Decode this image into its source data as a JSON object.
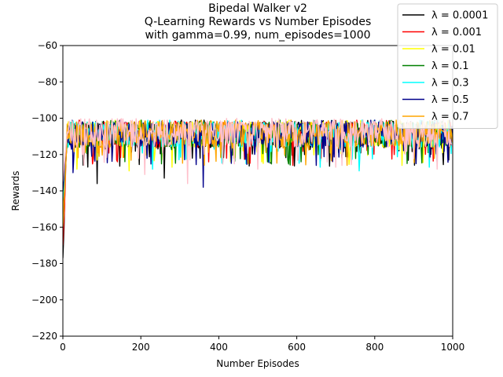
{
  "chart_data": {
    "type": "line",
    "title_lines": [
      "Bipedal Walker v2",
      "Q-Learning Rewards vs Number Episodes",
      "with gamma=0.99, num_episodes=1000"
    ],
    "xlabel": "Number Episodes",
    "ylabel": "Rewards",
    "xlim": [
      0,
      1000
    ],
    "ylim": [
      -220,
      -60
    ],
    "xticks": [
      0,
      200,
      400,
      600,
      800,
      1000
    ],
    "yticks": [
      -220,
      -200,
      -180,
      -160,
      -140,
      -120,
      -100,
      -80,
      -60
    ],
    "grid": false,
    "legend_position": "top-right",
    "series": [
      {
        "name": "λ = 0.0001",
        "color": "#000000",
        "first_points": [
          [
            0,
            -177
          ],
          [
            3,
            -160
          ],
          [
            6,
            -130
          ],
          [
            10,
            -112
          ]
        ],
        "baseline": -110,
        "spread": 7,
        "dips": [
          [
            88,
            -136
          ],
          [
            260,
            -133
          ],
          [
            352,
            -122
          ],
          [
            620,
            -120
          ],
          [
            990,
            -123
          ]
        ]
      },
      {
        "name": "λ = 0.001",
        "color": "#ff0000",
        "first_points": [
          [
            0,
            -170
          ],
          [
            4,
            -150
          ],
          [
            8,
            -122
          ],
          [
            12,
            -110
          ]
        ],
        "baseline": -109,
        "spread": 7,
        "dips": [
          [
            140,
            -124
          ],
          [
            420,
            -122
          ],
          [
            590,
            -126
          ],
          [
            850,
            -120
          ]
        ]
      },
      {
        "name": "λ = 0.01",
        "color": "#ffff00",
        "first_points": [
          [
            0,
            -160
          ],
          [
            4,
            -140
          ],
          [
            8,
            -118
          ]
        ],
        "baseline": -109,
        "spread": 7,
        "dips": [
          [
            35,
            -128
          ],
          [
            170,
            -129
          ],
          [
            280,
            -127
          ],
          [
            430,
            -124
          ],
          [
            870,
            -126
          ]
        ]
      },
      {
        "name": "λ = 0.1",
        "color": "#008000",
        "first_points": [
          [
            0,
            -150
          ],
          [
            5,
            -135
          ],
          [
            9,
            -118
          ]
        ],
        "baseline": -109,
        "spread": 7,
        "dips": [
          [
            45,
            -137
          ],
          [
            75,
            -135
          ],
          [
            370,
            -124
          ],
          [
            740,
            -125
          ]
        ]
      },
      {
        "name": "λ = 0.3",
        "color": "#00ffff",
        "first_points": [
          [
            0,
            -145
          ],
          [
            5,
            -128
          ],
          [
            10,
            -115
          ]
        ],
        "baseline": -109,
        "spread": 7,
        "dips": [
          [
            230,
            -128
          ],
          [
            470,
            -125
          ],
          [
            660,
            -127
          ],
          [
            760,
            -129
          ],
          [
            940,
            -127
          ]
        ]
      },
      {
        "name": "λ = 0.5",
        "color": "#00008b",
        "first_points": [
          [
            0,
            -140
          ],
          [
            5,
            -125
          ],
          [
            10,
            -113
          ]
        ],
        "baseline": -109,
        "spread": 7,
        "dips": [
          [
            25,
            -130
          ],
          [
            360,
            -138
          ],
          [
            650,
            -126
          ],
          [
            905,
            -125
          ]
        ]
      },
      {
        "name": "λ = 0.7",
        "color": "#ffa500",
        "first_points": [
          [
            0,
            -153
          ],
          [
            4,
            -141
          ],
          [
            9,
            -118
          ]
        ],
        "baseline": -109,
        "spread": 7,
        "dips": [
          [
            12,
            -141
          ],
          [
            300,
            -130
          ],
          [
            560,
            -124
          ],
          [
            920,
            -125
          ]
        ]
      },
      {
        "name": "",
        "color": "#ffc0cb",
        "first_points": [
          [
            0,
            -135
          ],
          [
            5,
            -122
          ],
          [
            10,
            -110
          ]
        ],
        "baseline": -108,
        "spread": 8,
        "dips": [
          [
            210,
            -131
          ],
          [
            320,
            -136
          ],
          [
            500,
            -128
          ],
          [
            700,
            -127
          ],
          [
            960,
            -128
          ]
        ]
      }
    ]
  }
}
